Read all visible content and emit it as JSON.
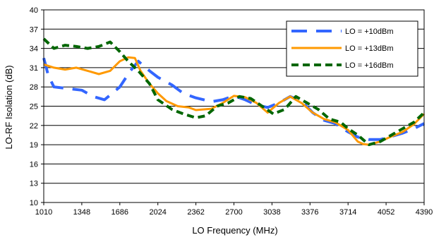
{
  "chart_data": {
    "type": "line",
    "xlabel": "LO Frequency (MHz)",
    "ylabel": "LO-RF Isolation (dB)",
    "xlim": [
      1010,
      4390
    ],
    "ylim": [
      10,
      40
    ],
    "xticks": [
      "1010",
      "1348",
      "1686",
      "2024",
      "2362",
      "2700",
      "3038",
      "3376",
      "3714",
      "4052",
      "4390"
    ],
    "yticks": [
      "10",
      "13",
      "16",
      "19",
      "22",
      "25",
      "28",
      "31",
      "34",
      "37",
      "40"
    ],
    "grid": "horizontal",
    "legend_position": "top-right",
    "series": [
      {
        "name": "LO = +10dBm",
        "color": "#3366ff",
        "style": "long-dash",
        "x": [
          1010,
          1050,
          1100,
          1200,
          1348,
          1450,
          1550,
          1686,
          1780,
          1850,
          1950,
          2024,
          2150,
          2250,
          2362,
          2500,
          2600,
          2700,
          2800,
          2900,
          3000,
          3100,
          3200,
          3300,
          3400,
          3500,
          3600,
          3714,
          3800,
          3900,
          4000,
          4100,
          4200,
          4300,
          4390
        ],
        "values": [
          32.5,
          29.8,
          28.0,
          27.8,
          27.5,
          26.5,
          26.0,
          28.0,
          30.5,
          32.0,
          30.5,
          29.5,
          28.3,
          27.0,
          26.3,
          25.7,
          26.0,
          26.6,
          26.0,
          25.2,
          24.8,
          25.5,
          26.5,
          25.8,
          24.0,
          22.8,
          22.3,
          21.0,
          20.2,
          19.8,
          19.8,
          20.3,
          20.8,
          21.5,
          22.3
        ]
      },
      {
        "name": "LO = +13dBm",
        "color": "#ff9900",
        "style": "solid",
        "x": [
          1010,
          1100,
          1200,
          1300,
          1400,
          1500,
          1600,
          1686,
          1760,
          1820,
          1870,
          1950,
          2024,
          2100,
          2200,
          2300,
          2362,
          2500,
          2600,
          2700,
          2800,
          2900,
          3000,
          3100,
          3200,
          3300,
          3400,
          3500,
          3600,
          3714,
          3800,
          3850,
          3900,
          4000,
          4100,
          4200,
          4300,
          4390
        ],
        "values": [
          31.5,
          31.0,
          30.7,
          31.0,
          30.5,
          30.0,
          30.5,
          32.0,
          32.6,
          32.5,
          30.5,
          28.5,
          27.0,
          25.8,
          25.0,
          24.8,
          24.4,
          24.6,
          25.5,
          26.6,
          26.4,
          25.5,
          24.0,
          25.5,
          26.5,
          25.5,
          24.0,
          23.0,
          22.5,
          21.3,
          19.5,
          19.1,
          19.0,
          19.5,
          20.3,
          21.0,
          22.2,
          23.8
        ]
      },
      {
        "name": "LO = +16dBm",
        "color": "#006600",
        "style": "short-dash",
        "x": [
          1010,
          1100,
          1200,
          1300,
          1400,
          1500,
          1600,
          1686,
          1760,
          1850,
          1950,
          2024,
          2150,
          2250,
          2362,
          2450,
          2550,
          2650,
          2750,
          2850,
          2950,
          3050,
          3150,
          3250,
          3350,
          3450,
          3550,
          3650,
          3714,
          3800,
          3900,
          4000,
          4100,
          4200,
          4300,
          4390
        ],
        "values": [
          35.5,
          34.0,
          34.5,
          34.3,
          34.0,
          34.3,
          35.0,
          33.5,
          32.0,
          30.5,
          28.5,
          26.0,
          24.5,
          23.8,
          23.2,
          23.5,
          25.0,
          25.5,
          26.5,
          26.2,
          25.0,
          23.8,
          24.5,
          26.5,
          25.5,
          24.5,
          23.0,
          22.5,
          21.5,
          20.5,
          19.0,
          19.5,
          20.5,
          21.5,
          22.5,
          24.0
        ]
      }
    ]
  }
}
